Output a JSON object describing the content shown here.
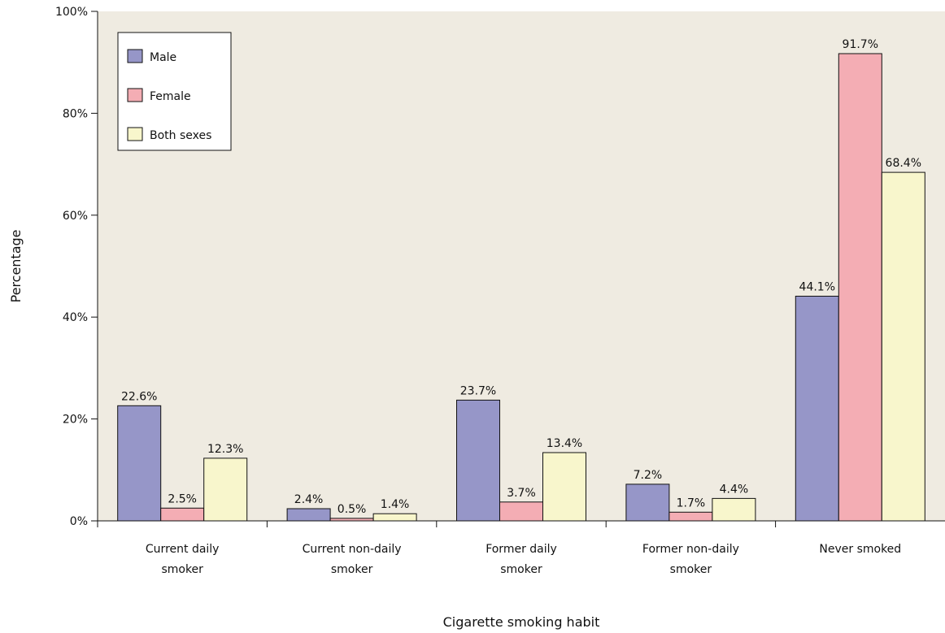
{
  "chart_data": {
    "type": "bar",
    "xlabel": "Cigarette smoking habit",
    "ylabel": "Percentage",
    "ylim": [
      0,
      100
    ],
    "yticks": [
      "0%",
      "20%",
      "40%",
      "60%",
      "80%",
      "100%"
    ],
    "grid": false,
    "legend_position": "top-left",
    "categories": [
      [
        "Current daily",
        "smoker"
      ],
      [
        "Current non-daily",
        "smoker"
      ],
      [
        "Former daily",
        "smoker"
      ],
      [
        "Former non-daily",
        "smoker"
      ],
      [
        "Never smoked"
      ]
    ],
    "series": [
      {
        "name": "Male",
        "color": "#9696c8",
        "values": [
          22.6,
          2.4,
          23.7,
          7.2,
          44.1
        ],
        "labels": [
          "22.6%",
          "2.4%",
          "23.7%",
          "7.2%",
          "44.1%"
        ]
      },
      {
        "name": "Female",
        "color": "#f4adb4",
        "values": [
          2.5,
          0.5,
          3.7,
          1.7,
          91.7
        ],
        "labels": [
          "2.5%",
          "0.5%",
          "3.7%",
          "1.7%",
          "91.7%"
        ]
      },
      {
        "name": "Both sexes",
        "color": "#f8f6cc",
        "values": [
          12.3,
          1.4,
          13.4,
          4.4,
          68.4
        ],
        "labels": [
          "12.3%",
          "1.4%",
          "13.4%",
          "4.4%",
          "68.4%"
        ]
      }
    ],
    "plot_background": "#efebe1"
  }
}
